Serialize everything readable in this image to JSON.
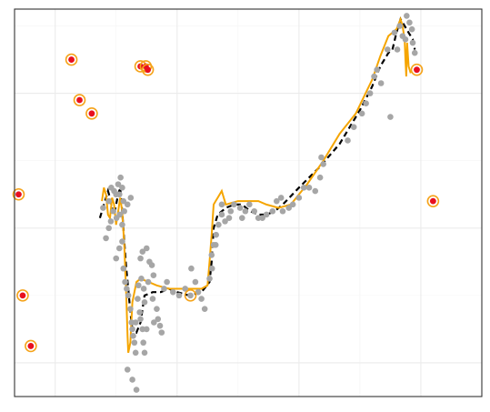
{
  "chart_data": {
    "type": "scatter",
    "title": "",
    "xlabel": "",
    "ylabel": "",
    "xlim": [
      -0.1,
      1.05
    ],
    "ylim": [
      -0.1,
      1.05
    ],
    "x_breaks": [
      0,
      0.3,
      0.6,
      0.9
    ],
    "y_breaks": [
      0,
      0.4,
      0.8
    ],
    "grid": true,
    "legend": "none",
    "colors": {
      "points": "#a6a6a6",
      "outlier_ring": "#f5a31a",
      "outlier_core": "#e8101f",
      "robust_curve": "#000000",
      "smooth_curve": "#f5a500",
      "panel_border": "#333333",
      "grid_major": "#ebebeb",
      "grid_minor": "#f4f4f4"
    },
    "series": [
      {
        "role": "data points",
        "points": [
          [
            0.118,
            0.46
          ],
          [
            0.132,
            0.48
          ],
          [
            0.138,
            0.52
          ],
          [
            0.145,
            0.51
          ],
          [
            0.15,
            0.5
          ],
          [
            0.155,
            0.53
          ],
          [
            0.158,
            0.5
          ],
          [
            0.161,
            0.55
          ],
          [
            0.165,
            0.52
          ],
          [
            0.168,
            0.48
          ],
          [
            0.125,
            0.37
          ],
          [
            0.132,
            0.4
          ],
          [
            0.137,
            0.42
          ],
          [
            0.143,
            0.45
          ],
          [
            0.151,
            0.43
          ],
          [
            0.159,
            0.44
          ],
          [
            0.165,
            0.41
          ],
          [
            0.17,
            0.45
          ],
          [
            0.178,
            0.47
          ],
          [
            0.186,
            0.49
          ],
          [
            0.15,
            0.31
          ],
          [
            0.158,
            0.34
          ],
          [
            0.165,
            0.36
          ],
          [
            0.168,
            0.28
          ],
          [
            0.172,
            0.24
          ],
          [
            0.176,
            0.22
          ],
          [
            0.18,
            0.2
          ],
          [
            0.185,
            0.16
          ],
          [
            0.188,
            0.12
          ],
          [
            0.19,
            0.1
          ],
          [
            0.192,
            0.08
          ],
          [
            0.195,
            0.06
          ],
          [
            0.198,
            0.03
          ],
          [
            0.203,
            0.19
          ],
          [
            0.208,
            0.15
          ],
          [
            0.21,
            0.13
          ],
          [
            0.215,
            0.1
          ],
          [
            0.217,
            0.06
          ],
          [
            0.22,
            0.03
          ],
          [
            0.225,
            0.1
          ],
          [
            0.178,
            -0.02
          ],
          [
            0.19,
            -0.05
          ],
          [
            0.2,
            -0.08
          ],
          [
            0.205,
            0.23
          ],
          [
            0.212,
            0.25
          ],
          [
            0.218,
            0.22
          ],
          [
            0.22,
            0.18
          ],
          [
            0.229,
            0.24
          ],
          [
            0.24,
            0.19
          ],
          [
            0.243,
            0.12
          ],
          [
            0.21,
            0.31
          ],
          [
            0.215,
            0.33
          ],
          [
            0.225,
            0.34
          ],
          [
            0.232,
            0.3
          ],
          [
            0.238,
            0.29
          ],
          [
            0.242,
            0.26
          ],
          [
            0.25,
            0.16
          ],
          [
            0.253,
            0.13
          ],
          [
            0.258,
            0.11
          ],
          [
            0.262,
            0.09
          ],
          [
            0.268,
            0.22
          ],
          [
            0.275,
            0.24
          ],
          [
            0.29,
            0.21
          ],
          [
            0.305,
            0.2
          ],
          [
            0.32,
            0.22
          ],
          [
            0.335,
            0.28
          ],
          [
            0.345,
            0.24
          ],
          [
            0.352,
            0.21
          ],
          [
            0.36,
            0.19
          ],
          [
            0.368,
            0.16
          ],
          [
            0.38,
            0.25
          ],
          [
            0.386,
            0.28
          ],
          [
            0.39,
            0.35
          ],
          [
            0.396,
            0.38
          ],
          [
            0.402,
            0.41
          ],
          [
            0.41,
            0.44
          ],
          [
            0.418,
            0.42
          ],
          [
            0.428,
            0.43
          ],
          [
            0.432,
            0.45
          ],
          [
            0.44,
            0.47
          ],
          [
            0.46,
            0.43
          ],
          [
            0.468,
            0.45
          ],
          [
            0.478,
            0.47
          ],
          [
            0.49,
            0.45
          ],
          [
            0.5,
            0.43
          ],
          [
            0.51,
            0.43
          ],
          [
            0.52,
            0.44
          ],
          [
            0.535,
            0.45
          ],
          [
            0.545,
            0.48
          ],
          [
            0.556,
            0.49
          ],
          [
            0.56,
            0.45
          ],
          [
            0.575,
            0.46
          ],
          [
            0.585,
            0.47
          ],
          [
            0.6,
            0.49
          ],
          [
            0.612,
            0.52
          ],
          [
            0.625,
            0.52
          ],
          [
            0.64,
            0.51
          ],
          [
            0.652,
            0.55
          ],
          [
            0.655,
            0.61
          ],
          [
            0.66,
            0.59
          ],
          [
            0.72,
            0.66
          ],
          [
            0.735,
            0.7
          ],
          [
            0.755,
            0.74
          ],
          [
            0.765,
            0.77
          ],
          [
            0.775,
            0.8
          ],
          [
            0.785,
            0.85
          ],
          [
            0.792,
            0.87
          ],
          [
            0.802,
            0.83
          ],
          [
            0.818,
            0.93
          ],
          [
            0.835,
            0.98
          ],
          [
            0.848,
            1.0
          ],
          [
            0.855,
            0.97
          ],
          [
            0.865,
            1.03
          ],
          [
            0.872,
            1.01
          ],
          [
            0.878,
            0.99
          ],
          [
            0.88,
            0.95
          ],
          [
            0.885,
            0.92
          ],
          [
            0.862,
            0.96
          ],
          [
            0.842,
            0.93
          ],
          [
            0.825,
            0.73
          ],
          [
            0.395,
            0.35
          ],
          [
            0.385,
            0.32
          ],
          [
            0.41,
            0.47
          ],
          [
            0.455,
            0.46
          ],
          [
            0.198,
            0.12
          ]
        ]
      },
      {
        "role": "flagged outliers",
        "points": [
          [
            -0.09,
            0.5
          ],
          [
            -0.08,
            0.2
          ],
          [
            -0.06,
            0.05
          ],
          [
            0.04,
            0.9
          ],
          [
            0.06,
            0.78
          ],
          [
            0.09,
            0.74
          ],
          [
            0.21,
            0.88
          ],
          [
            0.223,
            0.88
          ],
          [
            0.228,
            0.87
          ],
          [
            0.89,
            0.87
          ],
          [
            0.93,
            0.48
          ]
        ],
        "hollow": [
          [
            0.333,
            0.2
          ]
        ]
      },
      {
        "role": "robust fit",
        "style": "dashed",
        "x": [
          0.11,
          0.12,
          0.125,
          0.13,
          0.135,
          0.14,
          0.145,
          0.15,
          0.155,
          0.16,
          0.165,
          0.17,
          0.175,
          0.18,
          0.185,
          0.19,
          0.2,
          0.21,
          0.22,
          0.24,
          0.26,
          0.28,
          0.3,
          0.33,
          0.36,
          0.38,
          0.385,
          0.39,
          0.4,
          0.42,
          0.44,
          0.46,
          0.48,
          0.5,
          0.52,
          0.54,
          0.56,
          0.6,
          0.65,
          0.7,
          0.75,
          0.78,
          0.8,
          0.82,
          0.83,
          0.84,
          0.85,
          0.86,
          0.87,
          0.88,
          0.885
        ],
        "y": [
          0.43,
          0.47,
          0.49,
          0.51,
          0.49,
          0.46,
          0.44,
          0.47,
          0.5,
          0.52,
          0.45,
          0.36,
          0.28,
          0.22,
          0.15,
          0.1,
          0.09,
          0.12,
          0.2,
          0.21,
          0.21,
          0.22,
          0.21,
          0.2,
          0.21,
          0.24,
          0.3,
          0.4,
          0.44,
          0.46,
          0.47,
          0.47,
          0.45,
          0.44,
          0.44,
          0.45,
          0.47,
          0.52,
          0.58,
          0.65,
          0.75,
          0.82,
          0.88,
          0.92,
          0.93,
          0.98,
          1.02,
          1.0,
          0.98,
          0.96,
          0.93
        ],
        "color": "#000000"
      },
      {
        "role": "smooth fit",
        "style": "solid",
        "x": [
          0.115,
          0.12,
          0.125,
          0.13,
          0.135,
          0.14,
          0.145,
          0.15,
          0.155,
          0.16,
          0.165,
          0.17,
          0.175,
          0.178,
          0.18,
          0.185,
          0.19,
          0.2,
          0.21,
          0.23,
          0.25,
          0.28,
          0.3,
          0.33,
          0.36,
          0.375,
          0.38,
          0.385,
          0.39,
          0.395,
          0.4,
          0.41,
          0.42,
          0.45,
          0.48,
          0.5,
          0.52,
          0.55,
          0.58,
          0.62,
          0.66,
          0.7,
          0.74,
          0.78,
          0.8,
          0.82,
          0.84,
          0.85,
          0.855,
          0.86,
          0.862,
          0.864,
          0.866,
          0.87,
          0.875
        ],
        "y": [
          0.48,
          0.52,
          0.5,
          0.44,
          0.43,
          0.49,
          0.47,
          0.41,
          0.45,
          0.49,
          0.45,
          0.35,
          0.2,
          0.08,
          0.03,
          0.06,
          0.18,
          0.24,
          0.25,
          0.24,
          0.23,
          0.22,
          0.22,
          0.22,
          0.22,
          0.23,
          0.3,
          0.38,
          0.47,
          0.48,
          0.49,
          0.51,
          0.47,
          0.48,
          0.48,
          0.48,
          0.47,
          0.46,
          0.47,
          0.53,
          0.6,
          0.68,
          0.74,
          0.84,
          0.91,
          0.97,
          0.99,
          1.02,
          1.0,
          0.96,
          0.9,
          0.85,
          0.95,
          0.88,
          0.86
        ],
        "color": "#f5a500"
      }
    ]
  }
}
